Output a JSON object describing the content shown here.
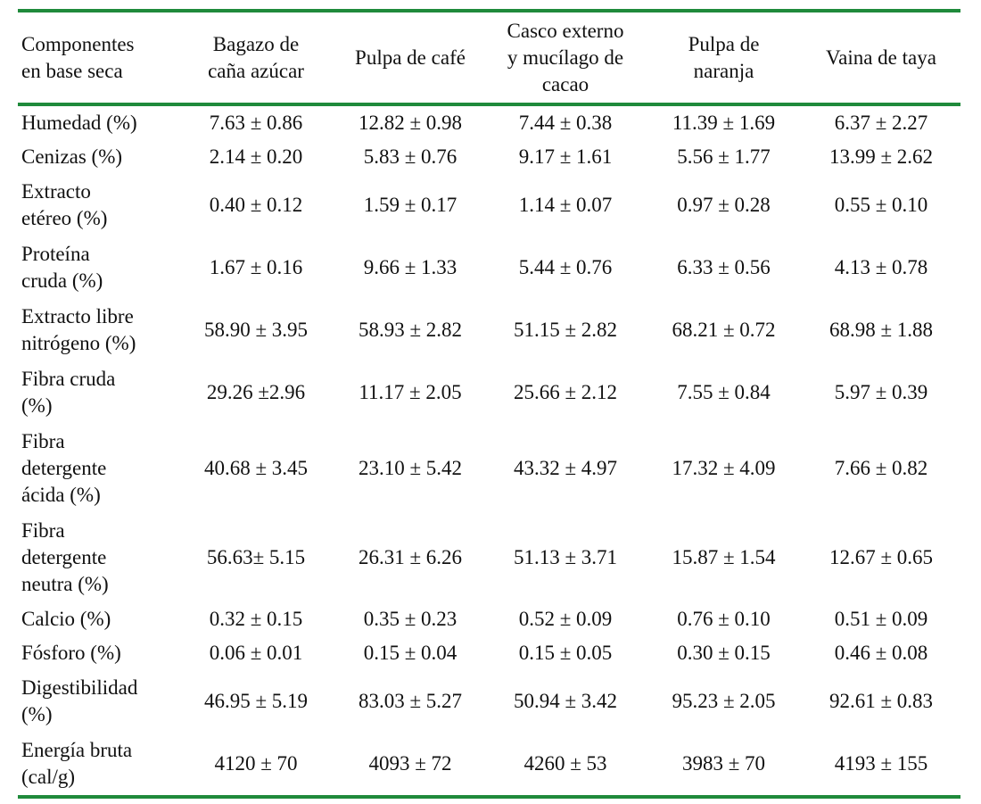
{
  "accent_color": "#1f8a3b",
  "table": {
    "headers": [
      "Componentes\nen base seca",
      "Bagazo de\ncaña azúcar",
      "Pulpa de café",
      "Casco externo\ny mucílago de\ncacao",
      "Pulpa de\nnaranja",
      "Vaina de taya"
    ],
    "rows": [
      {
        "label": "Humedad (%)",
        "values": [
          "7.63 ± 0.86",
          "12.82 ± 0.98",
          "7.44 ± 0.38",
          "11.39 ± 1.69",
          "6.37 ± 2.27"
        ]
      },
      {
        "label": "Cenizas (%)",
        "values": [
          "2.14 ± 0.20",
          "5.83 ± 0.76",
          "9.17 ± 1.61",
          "5.56 ± 1.77",
          "13.99 ± 2.62"
        ]
      },
      {
        "label": "Extracto\netéreo (%)",
        "values": [
          "0.40 ± 0.12",
          "1.59 ± 0.17",
          "1.14 ± 0.07",
          "0.97 ± 0.28",
          "0.55 ± 0.10"
        ]
      },
      {
        "label": "Proteína\ncruda (%)",
        "values": [
          "1.67 ± 0.16",
          "9.66 ± 1.33",
          "5.44 ± 0.76",
          "6.33 ± 0.56",
          "4.13 ± 0.78"
        ]
      },
      {
        "label": "Extracto libre\nnitrógeno (%)",
        "values": [
          "58.90 ± 3.95",
          "58.93 ± 2.82",
          "51.15 ± 2.82",
          "68.21 ± 0.72",
          "68.98 ± 1.88"
        ]
      },
      {
        "label": "Fibra cruda\n(%)",
        "values": [
          "29.26 ±2.96",
          "11.17 ± 2.05",
          "25.66 ± 2.12",
          "7.55 ± 0.84",
          "5.97 ± 0.39"
        ]
      },
      {
        "label": "Fibra\ndetergente\nácida (%)",
        "values": [
          "40.68 ± 3.45",
          "23.10 ± 5.42",
          "43.32 ± 4.97",
          "17.32 ± 4.09",
          "7.66 ± 0.82"
        ]
      },
      {
        "label": "Fibra\ndetergente\nneutra (%)",
        "values": [
          "56.63± 5.15",
          "26.31 ± 6.26",
          "51.13 ± 3.71",
          "15.87 ± 1.54",
          "12.67 ± 0.65"
        ]
      },
      {
        "label": "Calcio (%)",
        "values": [
          "0.32 ± 0.15",
          "0.35 ± 0.23",
          "0.52 ± 0.09",
          "0.76 ± 0.10",
          "0.51 ± 0.09"
        ]
      },
      {
        "label": "Fósforo (%)",
        "values": [
          "0.06 ± 0.01",
          "0.15 ± 0.04",
          "0.15 ± 0.05",
          "0.30 ± 0.15",
          "0.46 ± 0.08"
        ]
      },
      {
        "label": "Digestibilidad\n(%)",
        "values": [
          "46.95 ± 5.19",
          "83.03 ± 5.27",
          "50.94 ± 3.42",
          "95.23 ± 2.05",
          "92.61 ± 0.83"
        ]
      },
      {
        "label": "Energía bruta\n(cal/g)",
        "values": [
          "4120 ± 70",
          "4093 ± 72",
          "4260 ± 53",
          "3983 ± 70",
          "4193 ± 155"
        ]
      }
    ]
  }
}
